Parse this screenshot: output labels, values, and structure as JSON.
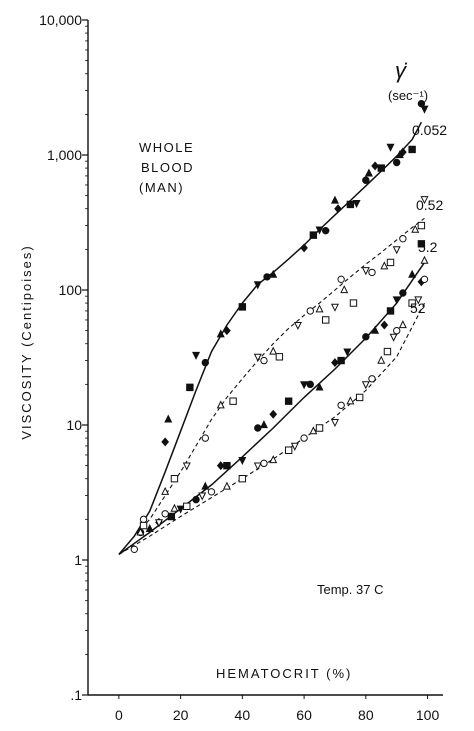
{
  "chart_data": {
    "type": "scatter",
    "title": "",
    "xlabel": "HEMATOCRIT (%)",
    "ylabel": "VISCOSITY (Centipoises)",
    "xlim": [
      -10,
      105
    ],
    "ylim": [
      0.1,
      10000
    ],
    "y_scale": "log",
    "x_ticks": [
      0,
      20,
      40,
      60,
      80,
      100
    ],
    "y_ticks": [
      {
        "v": 0.1,
        "label": ".1"
      },
      {
        "v": 1,
        "label": "1"
      },
      {
        "v": 10,
        "label": "10"
      },
      {
        "v": 100,
        "label": "100"
      },
      {
        "v": 1000,
        "label": "1,000"
      },
      {
        "v": 10000,
        "label": "10,000"
      }
    ],
    "grid": false,
    "annotations": {
      "whole_blood": [
        "WHOLE",
        "BLOOD",
        "(MAN)"
      ],
      "temperature": "Temp. 37 C",
      "shear_symbol": "γ̇",
      "shear_unit": "(sec⁻¹)"
    },
    "series": [
      {
        "name": "0.052",
        "style": "solid",
        "marker": "filled",
        "x": [
          0,
          5,
          10,
          15,
          20,
          25,
          30,
          35,
          40,
          45,
          50,
          55,
          60,
          65,
          70,
          75,
          80,
          85,
          90,
          95,
          98
        ],
        "y": [
          1.1,
          1.5,
          2.3,
          4.5,
          9,
          18,
          35,
          55,
          80,
          110,
          135,
          170,
          215,
          280,
          360,
          460,
          590,
          760,
          980,
          1300,
          1750
        ],
        "points": [
          [
            7,
            1.6
          ],
          [
            16,
            11
          ],
          [
            15,
            7.5
          ],
          [
            23,
            19
          ],
          [
            25,
            33
          ],
          [
            28,
            29
          ],
          [
            33,
            47
          ],
          [
            35,
            50
          ],
          [
            40,
            75
          ],
          [
            45,
            110
          ],
          [
            48,
            125
          ],
          [
            50,
            130
          ],
          [
            60,
            205
          ],
          [
            63,
            255
          ],
          [
            65,
            280
          ],
          [
            67,
            275
          ],
          [
            70,
            460
          ],
          [
            71,
            400
          ],
          [
            75,
            430
          ],
          [
            77,
            440
          ],
          [
            80,
            650
          ],
          [
            81,
            730
          ],
          [
            83,
            830
          ],
          [
            85,
            800
          ],
          [
            88,
            1150
          ],
          [
            90,
            880
          ],
          [
            91,
            1000
          ],
          [
            92,
            1050
          ],
          [
            95,
            1100
          ],
          [
            99,
            2200
          ],
          [
            98,
            2400
          ]
        ]
      },
      {
        "name": "0.52",
        "style": "dashed",
        "marker": "open",
        "x": [
          0,
          5,
          10,
          15,
          20,
          25,
          30,
          35,
          40,
          45,
          50,
          55,
          60,
          65,
          70,
          75,
          80,
          85,
          90,
          95,
          99
        ],
        "y": [
          1.1,
          1.5,
          2.0,
          3.0,
          4.5,
          7,
          11,
          16,
          22,
          30,
          40,
          52,
          65,
          80,
          100,
          125,
          155,
          190,
          235,
          290,
          340
        ],
        "points": [
          [
            8,
            2.0
          ],
          [
            15,
            3.2
          ],
          [
            18,
            4.0
          ],
          [
            22,
            5.0
          ],
          [
            28,
            8.0
          ],
          [
            33,
            14
          ],
          [
            37,
            15
          ],
          [
            45,
            32
          ],
          [
            47,
            30
          ],
          [
            50,
            35
          ],
          [
            52,
            32
          ],
          [
            58,
            55
          ],
          [
            62,
            70
          ],
          [
            65,
            72
          ],
          [
            67,
            60
          ],
          [
            70,
            75
          ],
          [
            72,
            120
          ],
          [
            73,
            100
          ],
          [
            76,
            80
          ],
          [
            80,
            140
          ],
          [
            82,
            135
          ],
          [
            86,
            150
          ],
          [
            88,
            160
          ],
          [
            90,
            200
          ],
          [
            92,
            240
          ],
          [
            96,
            280
          ],
          [
            98,
            300
          ],
          [
            99,
            470
          ]
        ]
      },
      {
        "name": "5.2",
        "style": "solid",
        "marker": "filled",
        "x": [
          0,
          10,
          20,
          30,
          40,
          50,
          60,
          70,
          80,
          90,
          99
        ],
        "y": [
          1.1,
          1.6,
          2.4,
          3.6,
          5.8,
          9.5,
          16,
          26,
          44,
          80,
          160
        ],
        "points": [
          [
            7,
            1.6
          ],
          [
            10,
            1.7
          ],
          [
            13,
            1.9
          ],
          [
            17,
            2.1
          ],
          [
            20,
            2.4
          ],
          [
            25,
            2.8
          ],
          [
            28,
            3.5
          ],
          [
            33,
            5.0
          ],
          [
            35,
            5.0
          ],
          [
            40,
            5.5
          ],
          [
            45,
            9.5
          ],
          [
            47,
            10
          ],
          [
            50,
            12
          ],
          [
            55,
            15
          ],
          [
            60,
            20
          ],
          [
            62,
            20
          ],
          [
            65,
            19
          ],
          [
            70,
            29
          ],
          [
            72,
            30
          ],
          [
            74,
            35
          ],
          [
            80,
            45
          ],
          [
            83,
            50
          ],
          [
            86,
            55
          ],
          [
            88,
            70
          ],
          [
            90,
            85
          ],
          [
            92,
            95
          ],
          [
            95,
            130
          ],
          [
            98,
            115
          ],
          [
            98,
            220
          ]
        ]
      },
      {
        "name": "52",
        "style": "dashed",
        "marker": "open",
        "x": [
          0,
          10,
          20,
          30,
          40,
          50,
          60,
          70,
          80,
          90,
          99
        ],
        "y": [
          1.1,
          1.5,
          2.1,
          2.9,
          4.0,
          5.6,
          8.0,
          11.5,
          18,
          32,
          80
        ],
        "points": [
          [
            5,
            1.2
          ],
          [
            7,
            1.6
          ],
          [
            8,
            1.8
          ],
          [
            13,
            1.9
          ],
          [
            15,
            2.2
          ],
          [
            18,
            2.4
          ],
          [
            22,
            2.5
          ],
          [
            27,
            3.0
          ],
          [
            30,
            3.2
          ],
          [
            35,
            3.5
          ],
          [
            40,
            4.0
          ],
          [
            45,
            5.0
          ],
          [
            47,
            5.2
          ],
          [
            50,
            5.5
          ],
          [
            55,
            6.5
          ],
          [
            57,
            7.0
          ],
          [
            60,
            8.0
          ],
          [
            63,
            9.0
          ],
          [
            65,
            9.5
          ],
          [
            70,
            10.5
          ],
          [
            72,
            14
          ],
          [
            75,
            15
          ],
          [
            78,
            16
          ],
          [
            80,
            20
          ],
          [
            82,
            22
          ],
          [
            85,
            30
          ],
          [
            87,
            35
          ],
          [
            89,
            45
          ],
          [
            90,
            50
          ],
          [
            92,
            55
          ],
          [
            95,
            80
          ],
          [
            97,
            85
          ],
          [
            99,
            120
          ],
          [
            99,
            165
          ]
        ]
      }
    ]
  }
}
